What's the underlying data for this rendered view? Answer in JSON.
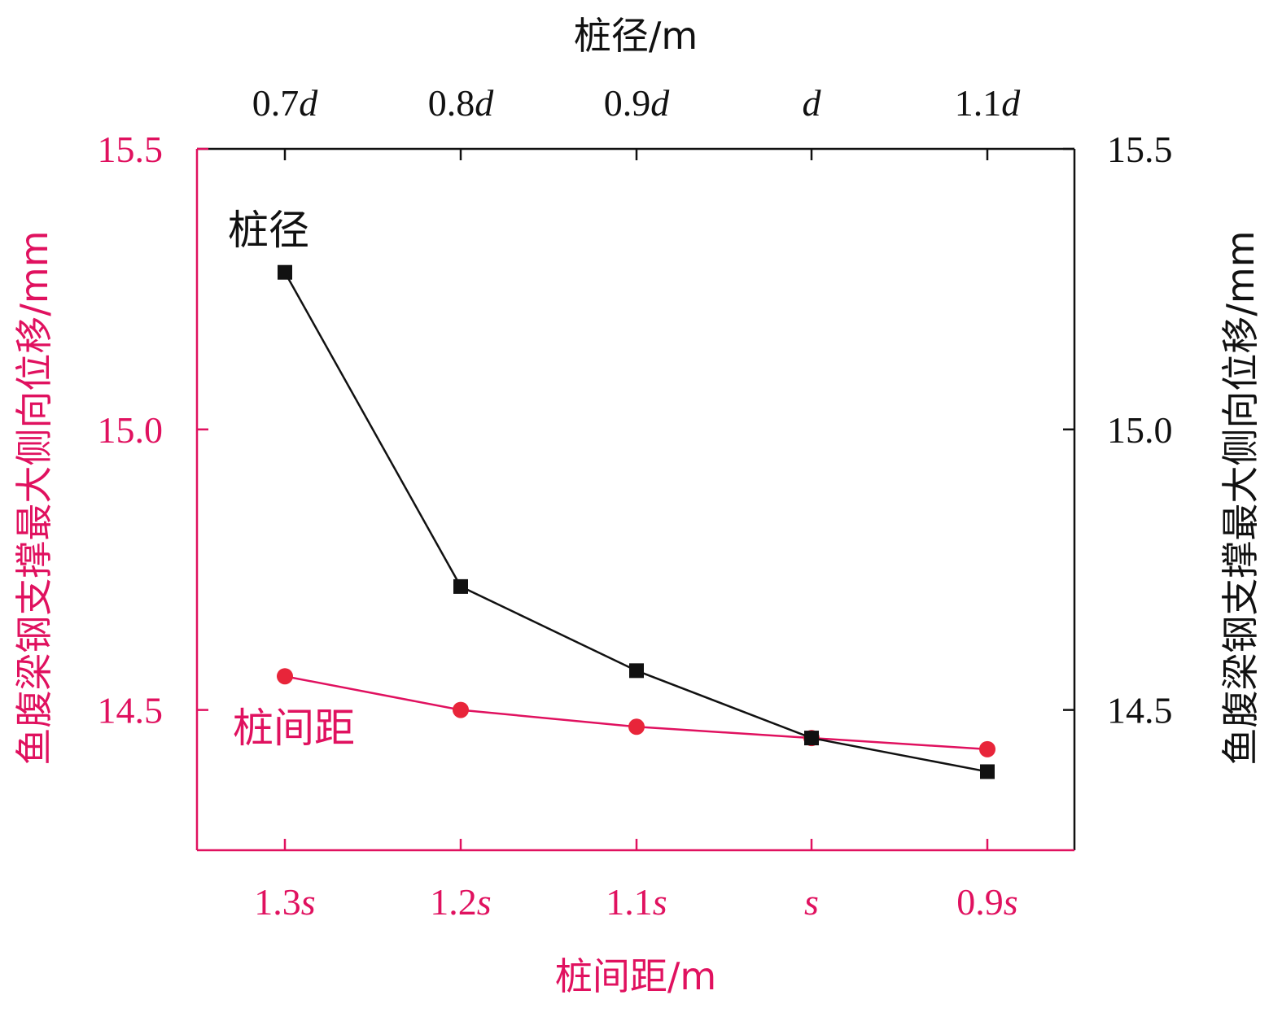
{
  "colors": {
    "black": "#111111",
    "red": "#e0115f",
    "marker_red": "#e8253a"
  },
  "chart_data": {
    "type": "line",
    "top_axis": {
      "title": "桩径/m",
      "ticks": [
        {
          "num": "0.7",
          "var": "d"
        },
        {
          "num": "0.8",
          "var": "d"
        },
        {
          "num": "0.9",
          "var": "d"
        },
        {
          "num": "",
          "var": "d"
        },
        {
          "num": "1.1",
          "var": "d"
        }
      ]
    },
    "bottom_axis": {
      "title": "桩间距/m",
      "ticks": [
        {
          "num": "1.3",
          "var": "s"
        },
        {
          "num": "1.2",
          "var": "s"
        },
        {
          "num": "1.1",
          "var": "s"
        },
        {
          "num": "",
          "var": "s"
        },
        {
          "num": "0.9",
          "var": "s"
        }
      ]
    },
    "left_axis": {
      "title": "鱼腹梁钢支撑最大侧向位移/mm",
      "ticks": [
        "14.5",
        "15.0",
        "15.5"
      ],
      "ylim": [
        14.25,
        15.5
      ]
    },
    "right_axis": {
      "title": "鱼腹梁钢支撑最大侧向位移/mm",
      "ticks": [
        "14.5",
        "15.0",
        "15.5"
      ],
      "ylim": [
        14.25,
        15.5
      ]
    },
    "series": [
      {
        "name": "桩径",
        "color": "#111111",
        "marker": "square",
        "values": [
          15.28,
          14.72,
          14.57,
          14.45,
          14.39
        ]
      },
      {
        "name": "桩间距",
        "color": "#e0115f",
        "marker": "circle",
        "values": [
          14.56,
          14.5,
          14.47,
          14.45,
          14.43
        ]
      }
    ]
  }
}
